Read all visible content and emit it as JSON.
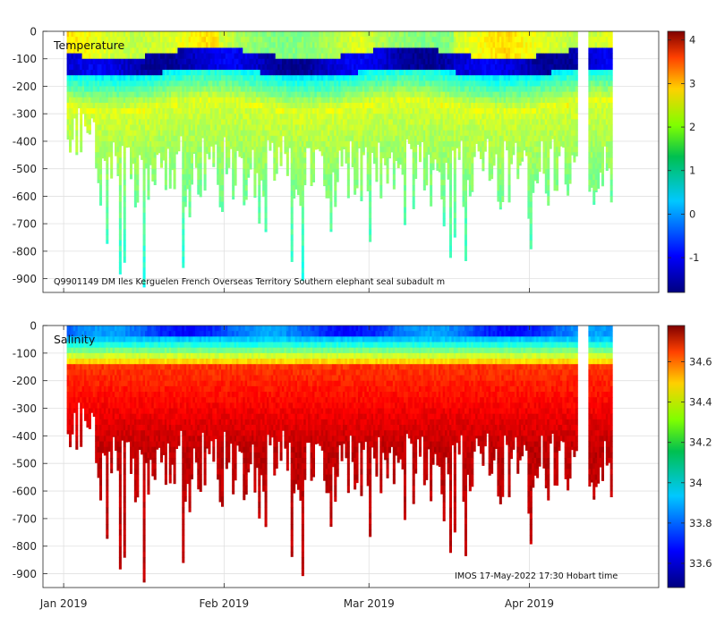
{
  "chart_data": [
    {
      "type": "heatmap",
      "title": "Temperature",
      "annotation": "Q9901149 DM Iles Kerguelen French Overseas Territory Southern elephant seal subadult m",
      "ylim": [
        -950,
        0
      ],
      "yticks": [
        0,
        -100,
        -200,
        -300,
        -400,
        -500,
        -600,
        -700,
        -800,
        -900
      ],
      "ytick_labels": [
        "0",
        "-100",
        "-200",
        "-300",
        "-400",
        "-500",
        "-600",
        "-700",
        "-800",
        "-900"
      ],
      "xlim_day_of_year": [
        -4,
        115
      ],
      "colorbar": {
        "range": [
          -1.8,
          4.2
        ],
        "ticks": [
          -1,
          0,
          1,
          2,
          3,
          4
        ],
        "tick_labels": [
          "-1",
          "0",
          "1",
          "2",
          "3",
          "4"
        ]
      }
    },
    {
      "type": "heatmap",
      "title": "Salinity",
      "annotation": "IMOS 17-May-2022 17:30 Hobart time",
      "ylim": [
        -950,
        0
      ],
      "yticks": [
        0,
        -100,
        -200,
        -300,
        -400,
        -500,
        -600,
        -700,
        -800,
        -900
      ],
      "ytick_labels": [
        "0",
        "-100",
        "-200",
        "-300",
        "-400",
        "-500",
        "-600",
        "-700",
        "-800",
        "-900"
      ],
      "xlim_day_of_year": [
        -4,
        115
      ],
      "xticks_day_of_year": [
        0,
        31,
        59,
        90
      ],
      "xtick_labels": [
        "Jan 2019",
        "Feb 2019",
        "Mar 2019",
        "Apr 2019"
      ],
      "colorbar": {
        "range": [
          33.48,
          34.78
        ],
        "ticks": [
          33.6,
          33.8,
          34,
          34.2,
          34.4,
          34.6
        ],
        "tick_labels": [
          "33.6",
          "33.8",
          "34",
          "34.2",
          "34.4",
          "34.6"
        ]
      }
    }
  ]
}
